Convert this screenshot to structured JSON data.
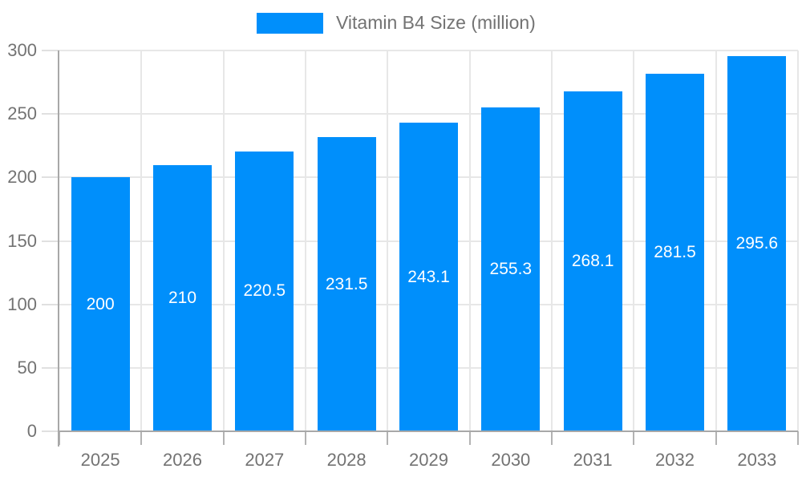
{
  "legend": {
    "label": "Vitamin B4 Size (million)"
  },
  "colors": {
    "bar": "#008FFB",
    "axis": "#a8a8a8",
    "gridline": "#e7e7e7",
    "axis_text": "#737373",
    "bar_label_text": "#ffffff"
  },
  "chart_data": {
    "type": "bar",
    "title": "",
    "legend": "Vitamin B4 Size (million)",
    "legend_position": "top",
    "categories": [
      "2025",
      "2026",
      "2027",
      "2028",
      "2029",
      "2030",
      "2031",
      "2032",
      "2033"
    ],
    "values": [
      200,
      210,
      220.5,
      231.5,
      243.1,
      255.3,
      268.1,
      281.5,
      295.6
    ],
    "value_labels": [
      "200",
      "210",
      "220.5",
      "231.5",
      "243.1",
      "255.3",
      "268.1",
      "281.5",
      "295.6"
    ],
    "xlabel": "",
    "ylabel": "",
    "ylim": [
      0,
      300
    ],
    "yticks": [
      0,
      50,
      100,
      150,
      200,
      250,
      300
    ],
    "grid": true
  }
}
